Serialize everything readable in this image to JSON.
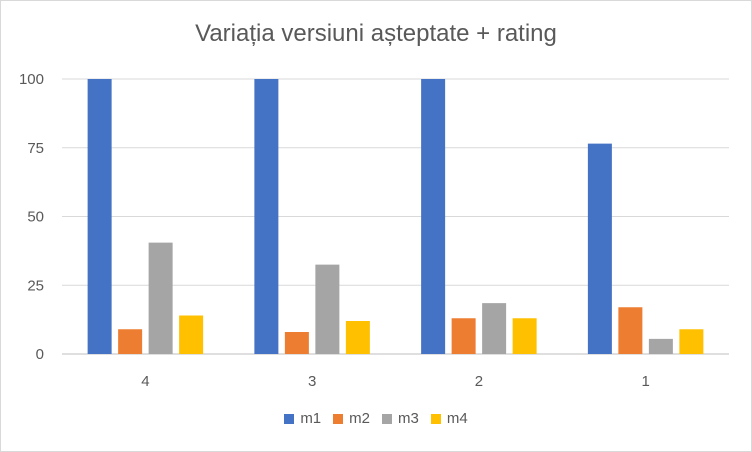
{
  "chart_data": {
    "type": "bar",
    "title": "Variația versiuni așteptate + rating",
    "xlabel": "",
    "ylabel": "",
    "categories": [
      "4",
      "3",
      "2",
      "1"
    ],
    "ylim": [
      0,
      100
    ],
    "yticks": [
      0,
      25,
      50,
      75,
      100
    ],
    "grid": true,
    "legend_position": "bottom",
    "series": [
      {
        "name": "m1",
        "color": "#4472C4",
        "values": [
          100,
          100,
          100,
          76.5
        ]
      },
      {
        "name": "m2",
        "color": "#ED7D31",
        "values": [
          9,
          8,
          13,
          17
        ]
      },
      {
        "name": "m3",
        "color": "#A5A5A5",
        "values": [
          40.5,
          32.5,
          18.5,
          5.5
        ]
      },
      {
        "name": "m4",
        "color": "#FFC000",
        "values": [
          14,
          12,
          13,
          9
        ]
      }
    ]
  }
}
